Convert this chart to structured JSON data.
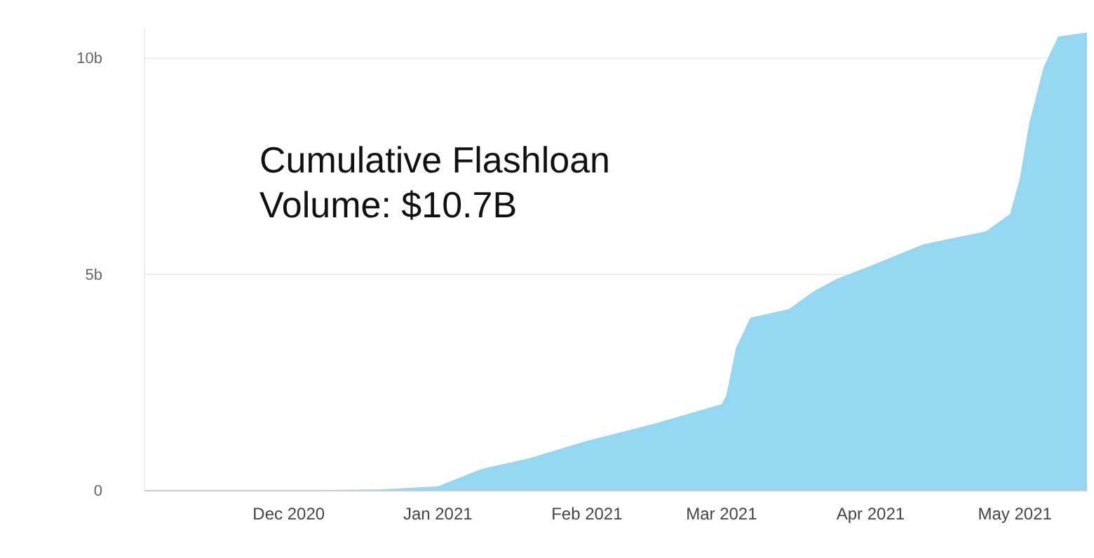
{
  "chart_data": {
    "type": "area",
    "title": "Cumulative Flashloan Volume: $10.7B",
    "x": [
      "2020-11-01",
      "2020-12-01",
      "2020-12-20",
      "2021-01-01",
      "2021-01-10",
      "2021-01-20",
      "2021-02-01",
      "2021-02-15",
      "2021-03-01",
      "2021-03-02",
      "2021-03-04",
      "2021-03-07",
      "2021-03-15",
      "2021-03-20",
      "2021-03-25",
      "2021-04-01",
      "2021-04-12",
      "2021-04-25",
      "2021-04-30",
      "2021-05-02",
      "2021-05-04",
      "2021-05-07",
      "2021-05-10",
      "2021-05-16"
    ],
    "series": [
      {
        "color": "#93d8f0",
        "values": [
          0,
          0.01,
          0.03,
          0.1,
          0.5,
          0.75,
          1.15,
          1.55,
          2.0,
          2.2,
          3.3,
          4.0,
          4.2,
          4.6,
          4.9,
          5.2,
          5.7,
          6.0,
          6.4,
          7.2,
          8.5,
          9.8,
          10.5,
          10.6
        ]
      }
    ],
    "xlim": [
      "2020-11-01",
      "2021-05-16"
    ],
    "xticks": [
      {
        "value": "2020-12-01",
        "label": "Dec 2020"
      },
      {
        "value": "2021-01-01",
        "label": "Jan 2021"
      },
      {
        "value": "2021-02-01",
        "label": "Feb 2021"
      },
      {
        "value": "2021-03-01",
        "label": "Mar 2021"
      },
      {
        "value": "2021-04-01",
        "label": "Apr 2021"
      },
      {
        "value": "2021-05-01",
        "label": "May 2021"
      }
    ],
    "ylim": [
      0,
      10.7
    ],
    "yticks": [
      {
        "value": 0,
        "label": "0"
      },
      {
        "value": 5,
        "label": "5b"
      },
      {
        "value": 10,
        "label": "10b"
      }
    ],
    "grid": "y"
  }
}
